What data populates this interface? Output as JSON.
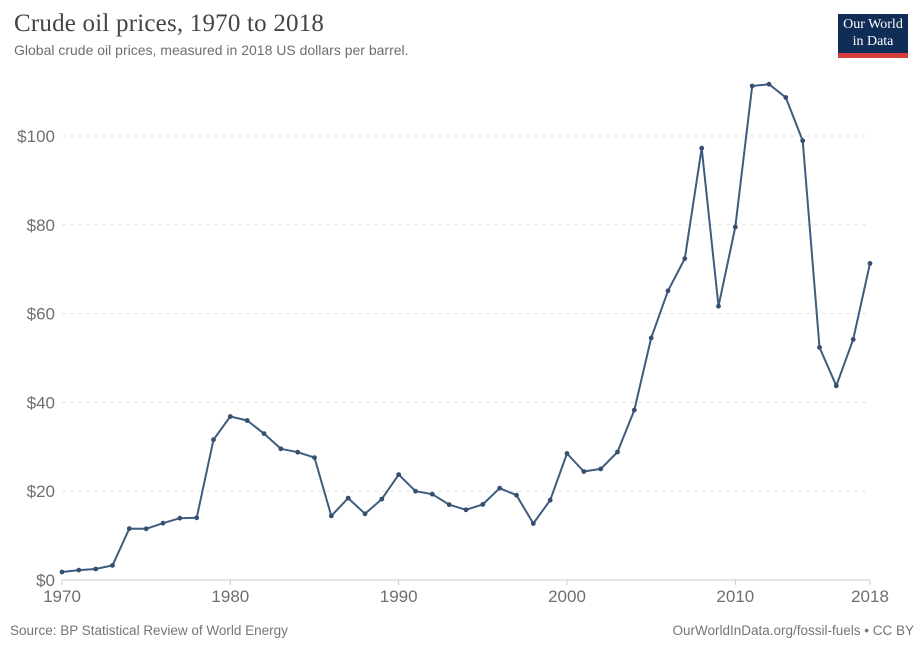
{
  "header": {
    "title": "Crude oil prices, 1970 to 2018",
    "subtitle": "Global crude oil prices, measured in 2018 US dollars per barrel."
  },
  "logo": {
    "line1": "Our World",
    "line2": "in Data",
    "bg_color": "#102d57",
    "bar_color": "#d73c3c"
  },
  "footer": {
    "source": "Source: BP Statistical Review of World Energy",
    "link": "OurWorldInData.org/fossil-fuels • CC BY"
  },
  "chart_data": {
    "type": "line",
    "title": "Crude oil prices, 1970 to 2018",
    "xlabel": "",
    "ylabel": "",
    "x": [
      1970,
      1971,
      1972,
      1973,
      1974,
      1975,
      1976,
      1977,
      1978,
      1979,
      1980,
      1981,
      1982,
      1983,
      1984,
      1985,
      1986,
      1987,
      1988,
      1989,
      1990,
      1991,
      1992,
      1993,
      1994,
      1995,
      1996,
      1997,
      1998,
      1999,
      2000,
      2001,
      2002,
      2003,
      2004,
      2005,
      2006,
      2007,
      2008,
      2009,
      2010,
      2011,
      2012,
      2013,
      2014,
      2015,
      2016,
      2017,
      2018
    ],
    "series": [
      {
        "name": "Crude oil price (US dollars per barrel)",
        "values": [
          1.8,
          2.24,
          2.48,
          3.29,
          11.58,
          11.53,
          12.8,
          13.92,
          14.02,
          31.61,
          36.83,
          35.93,
          32.97,
          29.55,
          28.78,
          27.56,
          14.43,
          18.44,
          14.92,
          18.23,
          23.73,
          20.0,
          19.32,
          16.97,
          15.82,
          17.02,
          20.67,
          19.09,
          12.72,
          17.97,
          28.5,
          24.44,
          25.02,
          28.83,
          38.27,
          54.52,
          65.14,
          72.39,
          97.26,
          61.67,
          79.5,
          111.26,
          111.67,
          108.66,
          98.95,
          52.39,
          43.73,
          54.19,
          71.31
        ]
      }
    ],
    "xlim": [
      1970,
      2018
    ],
    "ylim": [
      0,
      112
    ],
    "xticks": [
      1970,
      1980,
      1990,
      2000,
      2010,
      2018
    ],
    "yticks": [
      {
        "label": "$0",
        "value": 0
      },
      {
        "label": "$20",
        "value": 20
      },
      {
        "label": "$40",
        "value": 40
      },
      {
        "label": "$60",
        "value": 60
      },
      {
        "label": "$80",
        "value": 80
      },
      {
        "label": "$100",
        "value": 100
      }
    ],
    "grid": true,
    "legend": "none",
    "line_color": "#3e5c7e",
    "point_color": "#35506f",
    "grid_color": "#e4e4e4",
    "axis_color": "#cccccc",
    "tick_label_color": "#6f6f6f"
  }
}
